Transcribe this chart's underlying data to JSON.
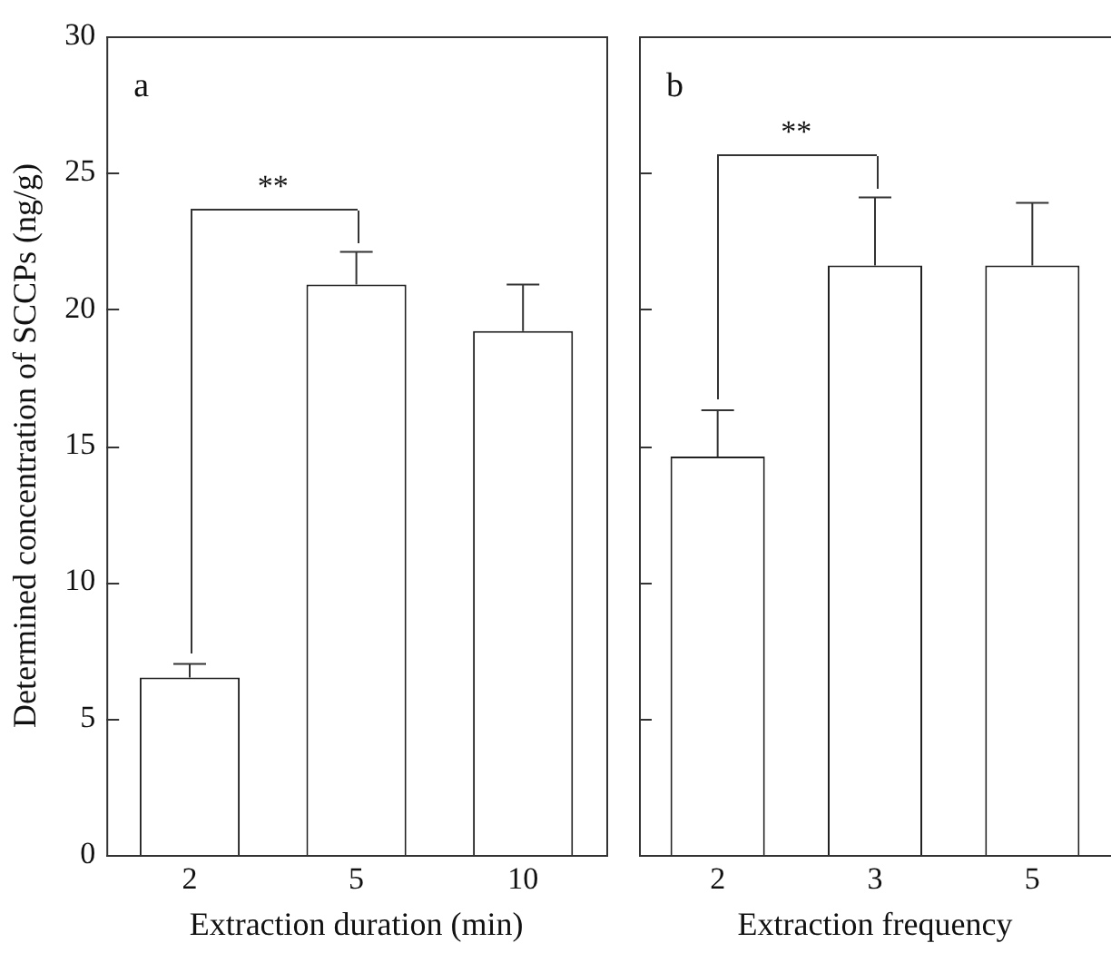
{
  "chart_data": [
    {
      "type": "bar",
      "categories": [
        "2",
        "5",
        "10"
      ],
      "values": [
        6.5,
        20.9,
        19.2
      ],
      "errors": [
        [
          6.5,
          7.0
        ],
        [
          20.9,
          22.1
        ],
        [
          19.2,
          20.9
        ]
      ],
      "color": "#ffffff",
      "xlabel": "Extraction duration (min)",
      "ylabel": "Determined concentration of SCCPs (ng/g)",
      "ylim": [
        0,
        30
      ],
      "yticks": [
        0,
        5,
        10,
        15,
        20,
        25,
        30
      ],
      "grid": false,
      "legend": false,
      "annotations": [
        "a",
        "**"
      ]
    },
    {
      "type": "bar",
      "categories": [
        "2",
        "3",
        "5"
      ],
      "values": [
        14.6,
        21.6,
        21.6
      ],
      "errors": [
        [
          14.6,
          16.3
        ],
        [
          21.6,
          24.1
        ],
        [
          21.6,
          23.9
        ]
      ],
      "color": "#ffffff",
      "xlabel": "Extraction frequency",
      "ylim": [
        0,
        30
      ],
      "yticks": [
        0,
        5,
        10,
        15,
        20,
        25,
        30
      ],
      "grid": false,
      "legend": false,
      "tick_labels": "x",
      "annotations": [
        "b",
        "**"
      ]
    }
  ]
}
